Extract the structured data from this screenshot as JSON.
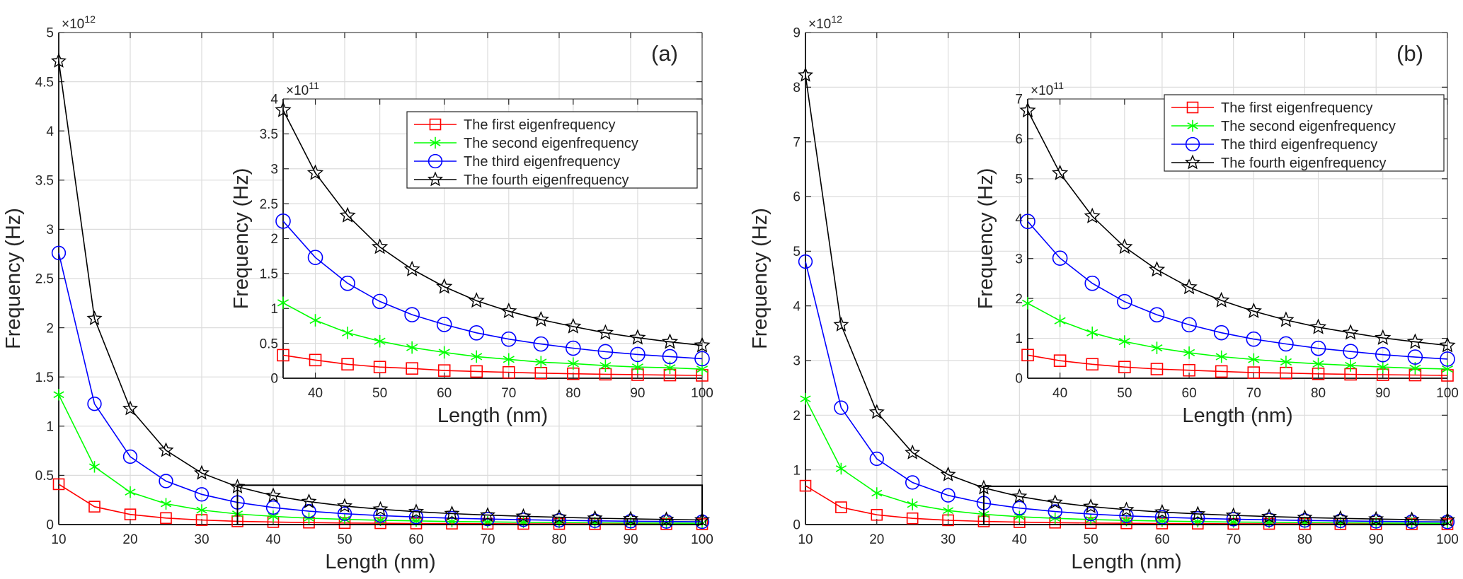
{
  "chart_data": [
    {
      "type": "line",
      "panel_label": "(a)",
      "xlabel": "Length (nm)",
      "ylabel": "Frequency (Hz)",
      "y_exponent": "12",
      "xlim": [
        10,
        100
      ],
      "ylim": [
        0,
        5
      ],
      "xticks": [
        10,
        20,
        30,
        40,
        50,
        60,
        70,
        80,
        90,
        100
      ],
      "yticks": [
        0,
        0.5,
        1,
        1.5,
        2,
        2.5,
        3,
        3.5,
        4,
        4.5,
        5
      ],
      "ytick_labels": [
        "0",
        "0.5",
        "1",
        "1.5",
        "2",
        "2.5",
        "3",
        "3.5",
        "4",
        "4.5",
        "5"
      ],
      "grid": true,
      "x": [
        10,
        15,
        20,
        25,
        30,
        35,
        40,
        45,
        50,
        55,
        60,
        65,
        70,
        75,
        80,
        85,
        90,
        95,
        100
      ],
      "series": [
        {
          "name": "The first eigenfrequency",
          "color": "#ff0000",
          "marker": "square",
          "values": [
            0.41,
            0.182,
            0.103,
            0.066,
            0.046,
            0.033,
            0.026,
            0.02,
            0.016,
            0.014,
            0.011,
            0.0097,
            0.0084,
            0.0073,
            0.0064,
            0.0057,
            0.0051,
            0.0045,
            0.0041
          ]
        },
        {
          "name": "The second eigenfrequency",
          "color": "#00ff00",
          "marker": "asterisk",
          "values": [
            1.32,
            0.587,
            0.33,
            0.211,
            0.147,
            0.108,
            0.083,
            0.065,
            0.053,
            0.044,
            0.037,
            0.031,
            0.027,
            0.023,
            0.021,
            0.018,
            0.016,
            0.015,
            0.013
          ]
        },
        {
          "name": "The third eigenfrequency",
          "color": "#0000ff",
          "marker": "circle",
          "values": [
            2.76,
            1.227,
            0.69,
            0.442,
            0.307,
            0.225,
            0.173,
            0.136,
            0.11,
            0.091,
            0.077,
            0.065,
            0.056,
            0.049,
            0.043,
            0.038,
            0.034,
            0.031,
            0.028
          ]
        },
        {
          "name": "The fourth eigenfrequency",
          "color": "#000000",
          "marker": "star",
          "values": [
            4.71,
            2.093,
            1.178,
            0.754,
            0.523,
            0.384,
            0.294,
            0.233,
            0.188,
            0.156,
            0.131,
            0.111,
            0.096,
            0.084,
            0.074,
            0.065,
            0.058,
            0.052,
            0.047
          ]
        }
      ],
      "zoom_box": {
        "x": [
          35,
          100
        ],
        "y": [
          0,
          0.4
        ]
      },
      "inset": {
        "xlabel": "Length (nm)",
        "ylabel": "Frequency (Hz)",
        "y_exponent": "11",
        "xlim": [
          35,
          100
        ],
        "ylim": [
          0,
          4
        ],
        "xticks": [
          40,
          50,
          60,
          70,
          80,
          90,
          100
        ],
        "yticks": [
          0,
          0.5,
          1,
          1.5,
          2,
          2.5,
          3,
          3.5,
          4
        ],
        "ytick_labels": [
          "0",
          "0.5",
          "1",
          "1.5",
          "2",
          "2.5",
          "3",
          "3.5",
          "4"
        ],
        "x": [
          35,
          40,
          45,
          50,
          55,
          60,
          65,
          70,
          75,
          80,
          85,
          90,
          95,
          100
        ],
        "series": [
          {
            "name": "The first eigenfrequency",
            "values": [
              0.33,
              0.26,
              0.2,
              0.16,
              0.14,
              0.11,
              0.097,
              0.084,
              0.073,
              0.064,
              0.057,
              0.051,
              0.045,
              0.041
            ]
          },
          {
            "name": "The second eigenfrequency",
            "values": [
              1.08,
              0.83,
              0.65,
              0.53,
              0.44,
              0.37,
              0.31,
              0.27,
              0.23,
              0.21,
              0.18,
              0.16,
              0.15,
              0.13
            ]
          },
          {
            "name": "The third eigenfrequency",
            "values": [
              2.25,
              1.73,
              1.36,
              1.1,
              0.91,
              0.77,
              0.65,
              0.56,
              0.49,
              0.43,
              0.38,
              0.34,
              0.31,
              0.28
            ]
          },
          {
            "name": "The fourth eigenfrequency",
            "values": [
              3.84,
              2.94,
              2.33,
              1.88,
              1.56,
              1.31,
              1.11,
              0.96,
              0.84,
              0.74,
              0.65,
              0.58,
              0.52,
              0.47
            ]
          }
        ],
        "legend_position": "top-right"
      }
    },
    {
      "type": "line",
      "panel_label": "(b)",
      "xlabel": "Length (nm)",
      "ylabel": "Frequency (Hz)",
      "y_exponent": "12",
      "xlim": [
        10,
        100
      ],
      "ylim": [
        0,
        9
      ],
      "xticks": [
        10,
        20,
        30,
        40,
        50,
        60,
        70,
        80,
        90,
        100
      ],
      "yticks": [
        0,
        1,
        2,
        3,
        4,
        5,
        6,
        7,
        8,
        9
      ],
      "ytick_labels": [
        "0",
        "1",
        "2",
        "3",
        "4",
        "5",
        "6",
        "7",
        "8",
        "9"
      ],
      "grid": true,
      "x": [
        10,
        15,
        20,
        25,
        30,
        35,
        40,
        45,
        50,
        55,
        60,
        65,
        70,
        75,
        80,
        85,
        90,
        95,
        100
      ],
      "series": [
        {
          "name": "The first eigenfrequency",
          "color": "#ff0000",
          "marker": "square",
          "values": [
            0.71,
            0.316,
            0.178,
            0.114,
            0.079,
            0.058,
            0.044,
            0.035,
            0.028,
            0.023,
            0.02,
            0.017,
            0.014,
            0.013,
            0.011,
            0.0098,
            0.0088,
            0.0079,
            0.0071
          ]
        },
        {
          "name": "The second eigenfrequency",
          "color": "#00ff00",
          "marker": "asterisk",
          "values": [
            2.3,
            1.022,
            0.575,
            0.368,
            0.256,
            0.188,
            0.144,
            0.114,
            0.092,
            0.076,
            0.064,
            0.054,
            0.047,
            0.041,
            0.036,
            0.032,
            0.028,
            0.025,
            0.023
          ]
        },
        {
          "name": "The third eigenfrequency",
          "color": "#0000ff",
          "marker": "circle",
          "values": [
            4.81,
            2.138,
            1.203,
            0.77,
            0.534,
            0.393,
            0.301,
            0.238,
            0.192,
            0.159,
            0.134,
            0.114,
            0.098,
            0.086,
            0.075,
            0.067,
            0.059,
            0.053,
            0.048
          ]
        },
        {
          "name": "The fourth eigenfrequency",
          "color": "#000000",
          "marker": "star",
          "values": [
            8.22,
            3.653,
            2.055,
            1.315,
            0.913,
            0.671,
            0.514,
            0.406,
            0.329,
            0.272,
            0.228,
            0.195,
            0.168,
            0.146,
            0.128,
            0.114,
            0.101,
            0.091,
            0.082
          ]
        }
      ],
      "zoom_box": {
        "x": [
          35,
          100
        ],
        "y": [
          0,
          0.7
        ]
      },
      "inset": {
        "xlabel": "Length (nm)",
        "ylabel": "Frequency (Hz)",
        "y_exponent": "11",
        "xlim": [
          35,
          100
        ],
        "ylim": [
          0,
          7
        ],
        "xticks": [
          40,
          50,
          60,
          70,
          80,
          90,
          100
        ],
        "yticks": [
          0,
          1,
          2,
          3,
          4,
          5,
          6,
          7
        ],
        "ytick_labels": [
          "0",
          "1",
          "2",
          "3",
          "4",
          "5",
          "6",
          "7"
        ],
        "x": [
          35,
          40,
          45,
          50,
          55,
          60,
          65,
          70,
          75,
          80,
          85,
          90,
          95,
          100
        ],
        "series": [
          {
            "name": "The first eigenfrequency",
            "values": [
              0.58,
              0.44,
              0.35,
              0.28,
              0.23,
              0.2,
              0.17,
              0.14,
              0.13,
              0.11,
              0.098,
              0.088,
              0.079,
              0.071
            ]
          },
          {
            "name": "The second eigenfrequency",
            "values": [
              1.88,
              1.44,
              1.14,
              0.92,
              0.76,
              0.64,
              0.54,
              0.47,
              0.41,
              0.36,
              0.32,
              0.28,
              0.25,
              0.23
            ]
          },
          {
            "name": "The third eigenfrequency",
            "values": [
              3.93,
              3.01,
              2.38,
              1.92,
              1.59,
              1.34,
              1.14,
              0.98,
              0.86,
              0.75,
              0.67,
              0.59,
              0.53,
              0.48
            ]
          },
          {
            "name": "The fourth eigenfrequency",
            "values": [
              6.71,
              5.14,
              4.06,
              3.29,
              2.72,
              2.28,
              1.95,
              1.68,
              1.46,
              1.28,
              1.14,
              1.01,
              0.91,
              0.82
            ]
          }
        ],
        "legend_position": "top-right"
      }
    }
  ]
}
